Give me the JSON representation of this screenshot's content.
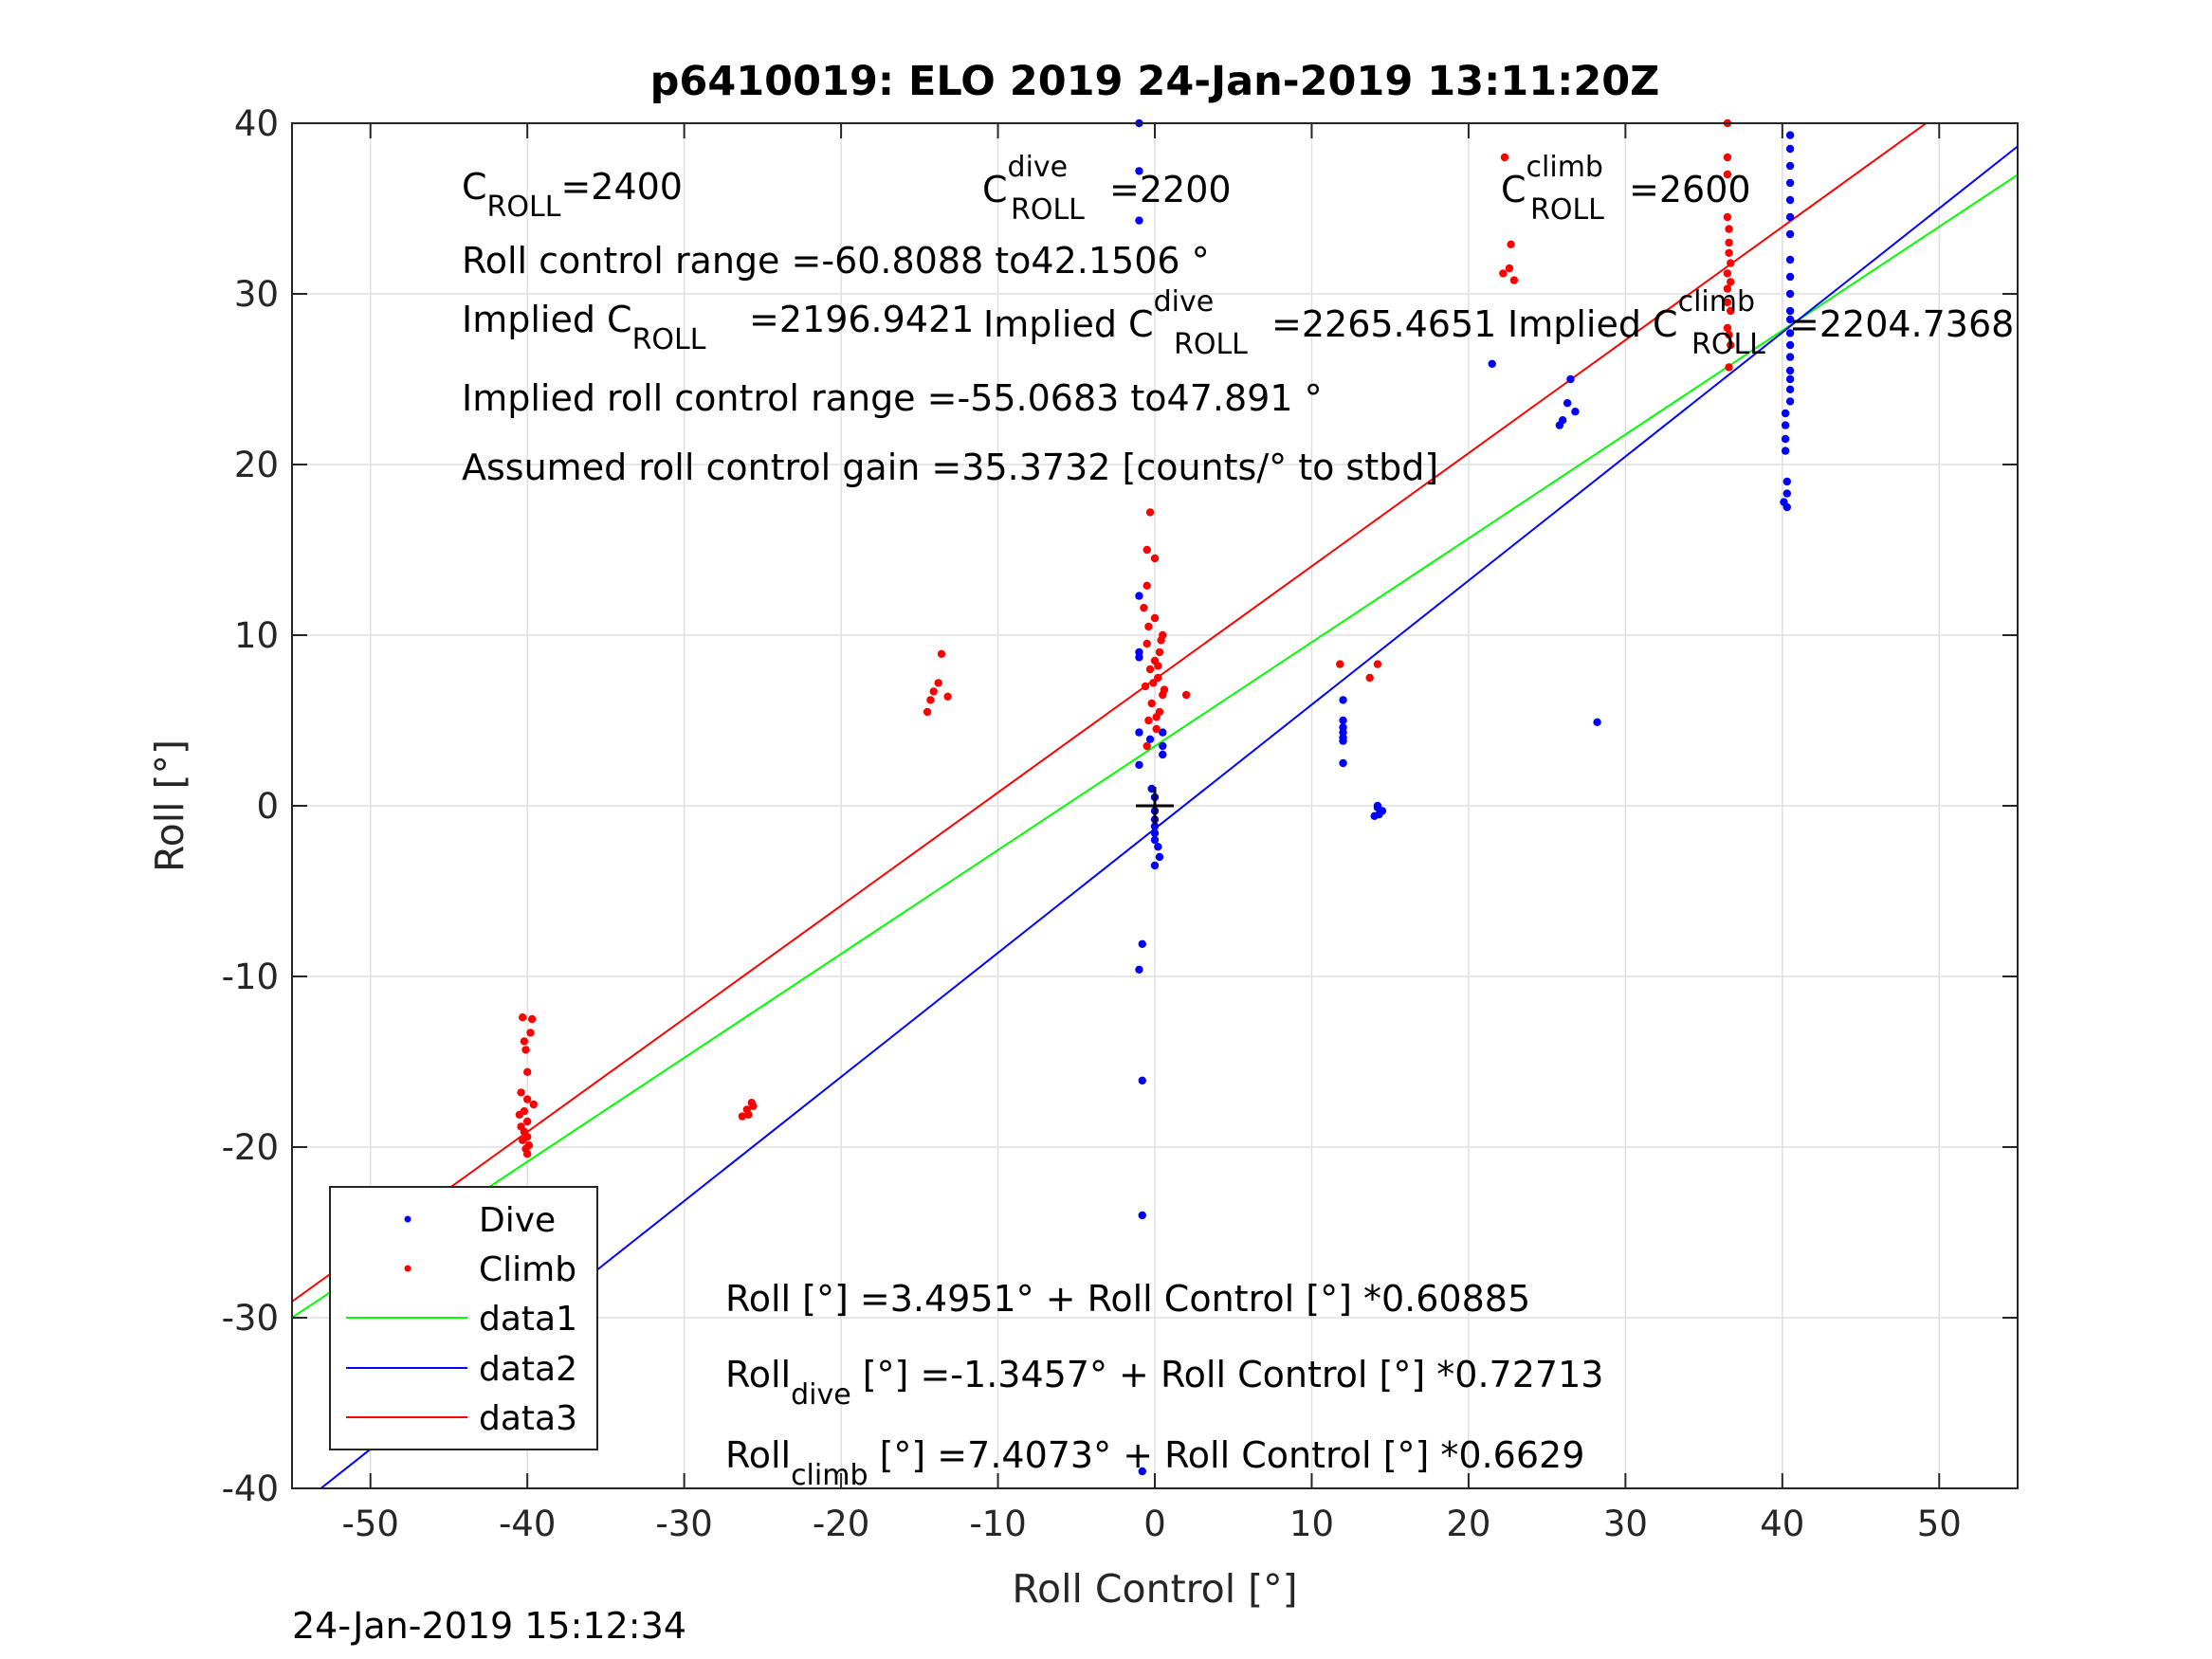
{
  "chart_data": {
    "type": "scatter",
    "title": "p6410019: ELO 2019 24-Jan-2019 13:11:20Z",
    "xlabel": "Roll Control [°]",
    "ylabel": "Roll [°]",
    "xlim": [
      -55,
      55
    ],
    "ylim": [
      -40,
      40
    ],
    "xticks": [
      -50,
      -40,
      -30,
      -20,
      -10,
      0,
      10,
      20,
      30,
      40,
      50
    ],
    "yticks": [
      -40,
      -30,
      -20,
      -10,
      0,
      10,
      20,
      30,
      40
    ],
    "grid": true,
    "legend_position": "bottom-left",
    "timestamp": "24-Jan-2019 15:12:34",
    "annotations": {
      "c_roll": "=2400",
      "c_roll_dive": "=2200",
      "c_roll_climb": "=2600",
      "roll_control_range": "Roll control range =-60.8088 to42.1506 °",
      "implied_c_roll": "=2196.9421",
      "implied_c_roll_dive": "=2265.4651",
      "implied_c_roll_climb": "=2204.7368",
      "implied_range": "Implied roll control range =-55.0683 to47.891 °",
      "gain": "Assumed roll control gain =35.3732 [counts/° to stbd]",
      "eq_all": "Roll [°] =3.4951° + Roll Control [°] *0.60885",
      "eq_dive": " [°] =-1.3457° + Roll Control [°] *0.72713",
      "eq_climb": " [°] =7.4073° + Roll Control [°] *0.6629"
    },
    "text_parts": {
      "c": "C",
      "implied_prefix": "Implied C",
      "roll_sub": "ROLL",
      "dive_sup": "dive",
      "climb_sup": "climb",
      "roll_word": "Roll",
      "dive_sub": "dive",
      "climb_sub": "climb"
    },
    "series": [
      {
        "name": "Dive",
        "color": "#0000ff",
        "marker": "dot",
        "points": [
          [
            -1,
            40
          ],
          [
            -1,
            37.2
          ],
          [
            -1,
            34.3
          ],
          [
            -1,
            12.3
          ],
          [
            -1,
            9
          ],
          [
            -1,
            8.7
          ],
          [
            -1,
            4.3
          ],
          [
            -1,
            2.4
          ],
          [
            -0.8,
            -8.1
          ],
          [
            -1,
            -9.6
          ],
          [
            -0.8,
            -16.1
          ],
          [
            -0.8,
            -24
          ],
          [
            -0.8,
            -39
          ],
          [
            -0.2,
            1.0
          ],
          [
            0,
            0.5
          ],
          [
            0,
            -0.3
          ],
          [
            0,
            -0.8
          ],
          [
            0,
            -1.2
          ],
          [
            0,
            -1.6
          ],
          [
            0,
            -2.0
          ],
          [
            0.2,
            -2.4
          ],
          [
            0.3,
            -3.0
          ],
          [
            0,
            -3.5
          ],
          [
            0.5,
            3.0
          ],
          [
            0.5,
            3.5
          ],
          [
            0.5,
            4.3
          ],
          [
            -0.3,
            3.9
          ],
          [
            12,
            6.2
          ],
          [
            12,
            5.0
          ],
          [
            12,
            4.6
          ],
          [
            12,
            4.3
          ],
          [
            12,
            4.0
          ],
          [
            12,
            3.8
          ],
          [
            12,
            2.5
          ],
          [
            14,
            -0.6
          ],
          [
            14.3,
            -0.5
          ],
          [
            14.5,
            -0.3
          ],
          [
            14.2,
            -0.1
          ],
          [
            14.2,
            0
          ],
          [
            21.5,
            25.9
          ],
          [
            25.8,
            22.3
          ],
          [
            26,
            22.6
          ],
          [
            26.3,
            23.6
          ],
          [
            26.5,
            25
          ],
          [
            26.8,
            23.1
          ],
          [
            28.2,
            4.9
          ],
          [
            40.5,
            39.3
          ],
          [
            40.5,
            38.5
          ],
          [
            40.5,
            37.5
          ],
          [
            40.5,
            36.5
          ],
          [
            40.5,
            35.5
          ],
          [
            40.5,
            34.5
          ],
          [
            40.5,
            33.5
          ],
          [
            40.5,
            32
          ],
          [
            40.5,
            31
          ],
          [
            40.5,
            30
          ],
          [
            40.5,
            29
          ],
          [
            40.5,
            28.5
          ],
          [
            40.5,
            27.7
          ],
          [
            40.5,
            27
          ],
          [
            40.5,
            26.3
          ],
          [
            40.5,
            25.5
          ],
          [
            40.5,
            25
          ],
          [
            40.5,
            24.4
          ],
          [
            40.5,
            23.7
          ],
          [
            40.2,
            23
          ],
          [
            40.2,
            22.3
          ],
          [
            40.2,
            21.5
          ],
          [
            40.2,
            20.8
          ],
          [
            40.3,
            19
          ],
          [
            40.3,
            18.3
          ],
          [
            40.1,
            17.8
          ],
          [
            40.3,
            17.5
          ]
        ]
      },
      {
        "name": "Climb",
        "color": "#ff0000",
        "marker": "dot",
        "points": [
          [
            -40.3,
            -12.4
          ],
          [
            -39.7,
            -12.5
          ],
          [
            -39.8,
            -13.3
          ],
          [
            -40.2,
            -13.8
          ],
          [
            -40.1,
            -14.3
          ],
          [
            -40,
            -15.6
          ],
          [
            -40.4,
            -16.8
          ],
          [
            -40,
            -17.2
          ],
          [
            -39.6,
            -17.5
          ],
          [
            -40.2,
            -17.9
          ],
          [
            -40.5,
            -18.1
          ],
          [
            -40,
            -18.5
          ],
          [
            -40.4,
            -18.8
          ],
          [
            -40.2,
            -19.1
          ],
          [
            -40,
            -19.4
          ],
          [
            -40.3,
            -19.6
          ],
          [
            -39.9,
            -19.9
          ],
          [
            -40.1,
            -20.1
          ],
          [
            -40,
            -20.4
          ],
          [
            -26.3,
            -18.2
          ],
          [
            -26,
            -17.8
          ],
          [
            -25.7,
            -17.4
          ],
          [
            -25.9,
            -18.1
          ],
          [
            -25.6,
            -17.6
          ],
          [
            -14.5,
            5.5
          ],
          [
            -14.3,
            6.2
          ],
          [
            -14.1,
            6.7
          ],
          [
            -13.8,
            7.2
          ],
          [
            -13.6,
            8.9
          ],
          [
            -13.2,
            6.4
          ],
          [
            -0.3,
            17.2
          ],
          [
            -0.5,
            15
          ],
          [
            0,
            14.5
          ],
          [
            -0.5,
            12.9
          ],
          [
            -0.7,
            11.6
          ],
          [
            0,
            11
          ],
          [
            0.5,
            10
          ],
          [
            -0.5,
            9.5
          ],
          [
            0.3,
            9
          ],
          [
            0,
            8.5
          ],
          [
            -0.3,
            8
          ],
          [
            0.2,
            7.5
          ],
          [
            -0.6,
            7
          ],
          [
            0.5,
            6.5
          ],
          [
            -0.2,
            6
          ],
          [
            0.3,
            5.5
          ],
          [
            -0.4,
            5
          ],
          [
            0.1,
            4.5
          ],
          [
            0.4,
            9.7
          ],
          [
            -0.4,
            10.5
          ],
          [
            0.2,
            8.2
          ],
          [
            -0.1,
            7.2
          ],
          [
            0.6,
            6.8
          ],
          [
            0.1,
            5.2
          ],
          [
            -0.5,
            3.5
          ],
          [
            2,
            6.5
          ],
          [
            11.8,
            8.3
          ],
          [
            13.7,
            7.5
          ],
          [
            14.2,
            8.3
          ],
          [
            22.3,
            38
          ],
          [
            22.7,
            32.9
          ],
          [
            22.2,
            31.2
          ],
          [
            22.6,
            31.5
          ],
          [
            22.9,
            30.8
          ],
          [
            36.5,
            40
          ],
          [
            36.5,
            38
          ],
          [
            36.5,
            37
          ],
          [
            36.5,
            34.5
          ],
          [
            36.6,
            33.8
          ],
          [
            36.6,
            33
          ],
          [
            36.6,
            32.4
          ],
          [
            36.7,
            31.8
          ],
          [
            36.5,
            31.2
          ],
          [
            36.7,
            30.7
          ],
          [
            36.5,
            30.3
          ],
          [
            36.5,
            29.5
          ],
          [
            36.7,
            29
          ],
          [
            36.5,
            28
          ],
          [
            36.6,
            27.6
          ],
          [
            36.7,
            27
          ],
          [
            36.6,
            25.7
          ]
        ]
      },
      {
        "name": "data1",
        "color": "#00ff00",
        "type": "line",
        "intercept": 3.4951,
        "slope": 0.60885,
        "x": [
          -55,
          55
        ]
      },
      {
        "name": "data2",
        "color": "#0000ff",
        "type": "line",
        "intercept": -1.3457,
        "slope": 0.72713,
        "x": [
          -55,
          55
        ]
      },
      {
        "name": "data3",
        "color": "#ff0000",
        "type": "line",
        "intercept": 7.4073,
        "slope": 0.6629,
        "x": [
          -55,
          55
        ]
      }
    ]
  }
}
